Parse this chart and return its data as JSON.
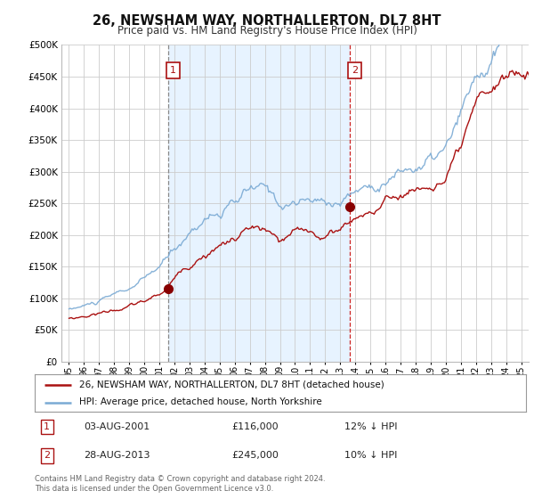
{
  "title": "26, NEWSHAM WAY, NORTHALLERTON, DL7 8HT",
  "subtitle": "Price paid vs. HM Land Registry's House Price Index (HPI)",
  "ytick_values": [
    0,
    50000,
    100000,
    150000,
    200000,
    250000,
    300000,
    350000,
    400000,
    450000,
    500000
  ],
  "ylim": [
    0,
    500000
  ],
  "xlim_left": 1995.0,
  "xlim_right": 2025.5,
  "background_color": "#ffffff",
  "plot_bg_color": "#ffffff",
  "grid_color": "#cccccc",
  "hpi_color": "#7aaad4",
  "price_color": "#aa1111",
  "shade_color": "#ddeeff",
  "sale1_x": 2001.6,
  "sale1_y": 116000,
  "sale2_x": 2013.66,
  "sale2_y": 245000,
  "sale1_label": "1",
  "sale2_label": "2",
  "sale1_date": "03-AUG-2001",
  "sale1_price": "£116,000",
  "sale1_pct": "12% ↓ HPI",
  "sale2_date": "28-AUG-2013",
  "sale2_price": "£245,000",
  "sale2_pct": "10% ↓ HPI",
  "legend_line1": "26, NEWSHAM WAY, NORTHALLERTON, DL7 8HT (detached house)",
  "legend_line2": "HPI: Average price, detached house, North Yorkshire",
  "footer": "Contains HM Land Registry data © Crown copyright and database right 2024.\nThis data is licensed under the Open Government Licence v3.0.",
  "vline1_color": "#888888",
  "vline2_color": "#cc2222"
}
